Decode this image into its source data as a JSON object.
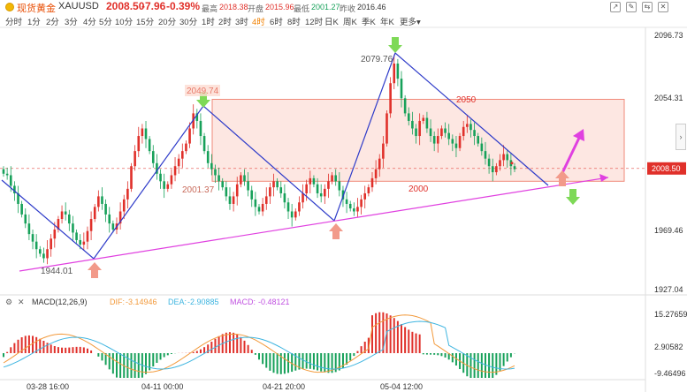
{
  "header": {
    "name": "现货黄金",
    "symbol": "XAUUSD",
    "price": "2008.50",
    "change": "-7.96",
    "change_pct": "-0.39%",
    "high_label": "最高",
    "high_value": "2018.38",
    "open_label": "开盘",
    "open_value": "2015.96",
    "low_label": "最低",
    "low_value": "2001.27",
    "prev_label": "昨收",
    "prev_value": "2016.46",
    "tools": [
      "↗",
      "✎",
      "⇆",
      "✕"
    ]
  },
  "timeframes": [
    "分时",
    "1分",
    "2分",
    "3分",
    "4分",
    "5分",
    "10分",
    "15分",
    "20分",
    "30分",
    "1时",
    "2时",
    "3时",
    "4时",
    "6时",
    "8时",
    "12时",
    "日K",
    "周K",
    "季K",
    "年K",
    "更多▾"
  ],
  "active_timeframe": "4时",
  "colors": {
    "up": "#e0302a",
    "down": "#17a15a",
    "trend": "#2e3bc9",
    "support": "#e040e0",
    "box_fill": "#fde7e2",
    "box_stroke": "#f08a7a",
    "dif": "#f29a3c",
    "dea": "#3fb5e0",
    "up_arrow": "#f29a8a",
    "down_arrow": "#7ed957"
  },
  "chart_data": {
    "type": "candlestick",
    "y_axis_ticks": [
      "2096.73",
      "2054.31",
      "2008.50",
      "1969.46",
      "1927.04"
    ],
    "ylim": [
      1927.04,
      2096.73
    ],
    "current_price": "2008.50",
    "x_axis_labels": [
      "03-28 16:00",
      "04-11 00:00",
      "04-21 20:00",
      "05-04 12:00"
    ],
    "annotations": [
      "2049.74",
      "2001.37",
      "1944.01",
      "2079.76",
      "2050",
      "2000"
    ],
    "closes": [
      2005,
      2004,
      1997,
      1992,
      1985,
      1978,
      1972,
      1965,
      1960,
      1955,
      1952,
      1949,
      1955,
      1962,
      1968,
      1975,
      1980,
      1978,
      1972,
      1966,
      1961,
      1958,
      1960,
      1967,
      1975,
      1983,
      1990,
      1985,
      1978,
      1972,
      1968,
      1972,
      1980,
      1988,
      1995,
      2010,
      2020,
      2030,
      2035,
      2028,
      2020,
      2012,
      2005,
      2000,
      1995,
      1998,
      2004,
      2010,
      2015,
      2020,
      2025,
      2035,
      2045,
      2040,
      2030,
      2020,
      2012,
      2008,
      2004,
      2000,
      1996,
      1990,
      1985,
      1990,
      1998,
      2004,
      2000,
      1994,
      1988,
      1983,
      1980,
      1985,
      1990,
      1996,
      2000,
      1996,
      1992,
      1986,
      1980,
      1976,
      1980,
      1986,
      1992,
      1998,
      2002,
      1998,
      1992,
      1990,
      1995,
      2000,
      2004,
      2000,
      1994,
      1988,
      1985,
      1982,
      1980,
      1983,
      1988,
      1992,
      1996,
      2002,
      2008,
      2015,
      2025,
      2045,
      2065,
      2078,
      2068,
      2055,
      2045,
      2040,
      2035,
      2030,
      2040,
      2042,
      2035,
      2030,
      2025,
      2030,
      2035,
      2032,
      2028,
      2025,
      2022,
      2030,
      2036,
      2038,
      2034,
      2030,
      2025,
      2020,
      2015,
      2010,
      2006,
      2010,
      2014,
      2018,
      2014,
      2010,
      2008
    ],
    "macd": {
      "label": "MACD(12,26,9)",
      "dif_label": "DIF:",
      "dif": "-3.14946",
      "dea_label": "DEA:",
      "dea": "-2.90885",
      "macd_label": "MACD:",
      "macd": "-0.48121",
      "y_axis_ticks": [
        "15.27659",
        "2.90582",
        "-9.46496"
      ]
    }
  }
}
